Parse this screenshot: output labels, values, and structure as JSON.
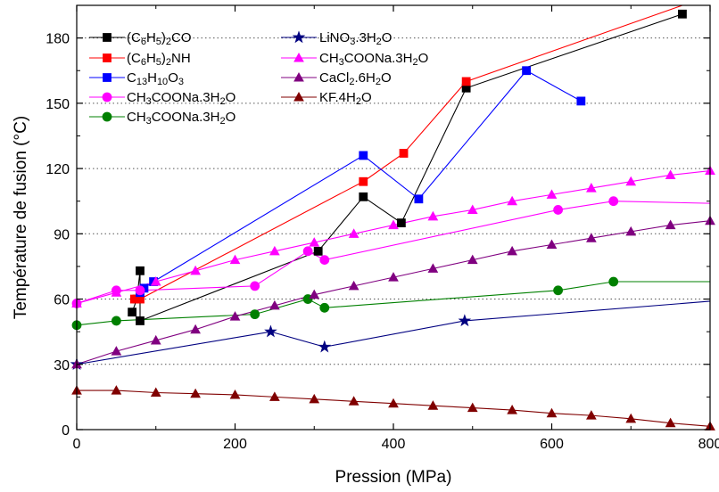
{
  "chart_data": {
    "type": "line",
    "xlabel": "Pression (MPa)",
    "ylabel": "Température de fusion (°C)",
    "xlim": [
      0,
      800
    ],
    "ylim": [
      0,
      195
    ],
    "xticks": [
      "0",
      "200",
      "400",
      "600",
      "800"
    ],
    "xtick_values": [
      0,
      200,
      400,
      600,
      800
    ],
    "yticks": [
      "0",
      "30",
      "60",
      "90",
      "120",
      "150",
      "180"
    ],
    "ytick_values": [
      0,
      30,
      60,
      90,
      120,
      150,
      180
    ],
    "grid": "horizontal dotted",
    "legend_placement": "top-left",
    "series": [
      {
        "name": "(C6H5)2CO",
        "legend": [
          {
            "t": "(C"
          },
          {
            "t": "6",
            "s": "sub"
          },
          {
            "t": "H"
          },
          {
            "t": "5",
            "s": "sub"
          },
          {
            "t": ")"
          },
          {
            "t": "2",
            "s": "sub"
          },
          {
            "t": "CO"
          }
        ],
        "color": "#000000",
        "marker": "square",
        "filled": true,
        "connect": "segments",
        "x": [
          70,
          76,
          80,
          80,
          305,
          362,
          410,
          492,
          765
        ],
        "y": [
          54,
          60,
          73,
          50,
          82,
          107,
          95,
          157,
          191
        ]
      },
      {
        "name": "(C6H5)2NH",
        "legend": [
          {
            "t": "(C"
          },
          {
            "t": "6",
            "s": "sub"
          },
          {
            "t": "H"
          },
          {
            "t": "5",
            "s": "sub"
          },
          {
            "t": ")"
          },
          {
            "t": "2",
            "s": "sub"
          },
          {
            "t": "NH"
          }
        ],
        "color": "#ff0000",
        "marker": "square",
        "filled": true,
        "connect": "segments",
        "x": [
          73,
          80,
          362,
          413,
          492,
          765
        ],
        "y": [
          60,
          60,
          114,
          127,
          160,
          200
        ]
      },
      {
        "name": "C13H10O3",
        "legend": [
          {
            "t": "C"
          },
          {
            "t": "13",
            "s": "sub"
          },
          {
            "t": "H"
          },
          {
            "t": "10",
            "s": "sub"
          },
          {
            "t": "O"
          },
          {
            "t": "3",
            "s": "sub"
          }
        ],
        "color": "#0000ff",
        "marker": "square",
        "filled": true,
        "connect": "segments",
        "x": [
          80,
          85,
          97,
          362,
          432,
          568,
          637
        ],
        "y": [
          63,
          65,
          68,
          126,
          106,
          165,
          151
        ]
      },
      {
        "name": "CH3COONa.3H2O",
        "legend": [
          {
            "t": "CH"
          },
          {
            "t": "3",
            "s": "sub"
          },
          {
            "t": "COONa.3H"
          },
          {
            "t": "2",
            "s": "sub"
          },
          {
            "t": "O"
          }
        ],
        "color": "#ff00ff",
        "marker": "circle",
        "filled": true,
        "connect": "segments",
        "x": [
          0,
          50,
          80,
          225,
          292,
          313,
          608,
          678
        ],
        "y": [
          58,
          64,
          64,
          66,
          82,
          78,
          101,
          105
        ],
        "extend_to": [
          800,
          104
        ]
      },
      {
        "name": "CH3COONa.3H2O",
        "legend": [
          {
            "t": "CH"
          },
          {
            "t": "3",
            "s": "sub"
          },
          {
            "t": "COONa.3H"
          },
          {
            "t": "2",
            "s": "sub"
          },
          {
            "t": "O"
          }
        ],
        "color": "#008000",
        "marker": "circle",
        "filled": true,
        "connect": "segments",
        "x": [
          0,
          50,
          225,
          292,
          313,
          608,
          678
        ],
        "y": [
          48,
          50,
          53,
          60,
          56,
          64,
          68
        ],
        "extend_to": [
          800,
          68
        ]
      },
      {
        "name": "LiNO3.3H2O",
        "legend": [
          {
            "t": "LiNO"
          },
          {
            "t": "3",
            "s": "sub"
          },
          {
            "t": ".3H"
          },
          {
            "t": "2",
            "s": "sub"
          },
          {
            "t": "O"
          }
        ],
        "color": "#000080",
        "marker": "star",
        "filled": true,
        "connect": "segments",
        "x": [
          0,
          245,
          313,
          490
        ],
        "y": [
          30,
          45,
          38,
          50
        ],
        "extend_to": [
          800,
          59
        ]
      },
      {
        "name": "CH3COONa.3H2O",
        "legend": [
          {
            "t": "CH"
          },
          {
            "t": "3",
            "s": "sub"
          },
          {
            "t": "COONa.3H"
          },
          {
            "t": "2",
            "s": "sub"
          },
          {
            "t": "O"
          }
        ],
        "color": "#ff00ff",
        "marker": "triangle",
        "filled": true,
        "connect": "segments",
        "x": [
          0,
          50,
          100,
          150,
          200,
          250,
          300,
          350,
          400,
          450,
          500,
          550,
          600,
          650,
          700,
          750,
          800
        ],
        "y": [
          58,
          63,
          68,
          73,
          78,
          82,
          86,
          90,
          94,
          98,
          101,
          105,
          108,
          111,
          114,
          117,
          119
        ]
      },
      {
        "name": "CaCl2.6H2O",
        "legend": [
          {
            "t": "CaCl"
          },
          {
            "t": "2",
            "s": "sub"
          },
          {
            "t": ".6H"
          },
          {
            "t": "2",
            "s": "sub"
          },
          {
            "t": "O"
          }
        ],
        "color": "#800080",
        "marker": "triangle",
        "filled": true,
        "connect": "segments",
        "x": [
          0,
          50,
          100,
          150,
          200,
          250,
          300,
          350,
          400,
          450,
          500,
          550,
          600,
          650,
          700,
          750,
          800
        ],
        "y": [
          30,
          36,
          41,
          46,
          52,
          57,
          62,
          66,
          70,
          74,
          78,
          82,
          85,
          88,
          91,
          94,
          96
        ]
      },
      {
        "name": "KF.4H2O",
        "legend": [
          {
            "t": "KF.4H"
          },
          {
            "t": "2",
            "s": "sub"
          },
          {
            "t": "O"
          }
        ],
        "color": "#800000",
        "marker": "triangle",
        "filled": true,
        "connect": "segments",
        "x": [
          0,
          50,
          100,
          150,
          200,
          250,
          300,
          350,
          400,
          450,
          500,
          550,
          600,
          650,
          700,
          750,
          800
        ],
        "y": [
          18,
          18,
          17,
          16.5,
          16,
          15,
          14,
          13,
          12,
          11,
          10,
          9,
          7.5,
          6.5,
          5,
          3,
          1.5
        ]
      }
    ]
  }
}
